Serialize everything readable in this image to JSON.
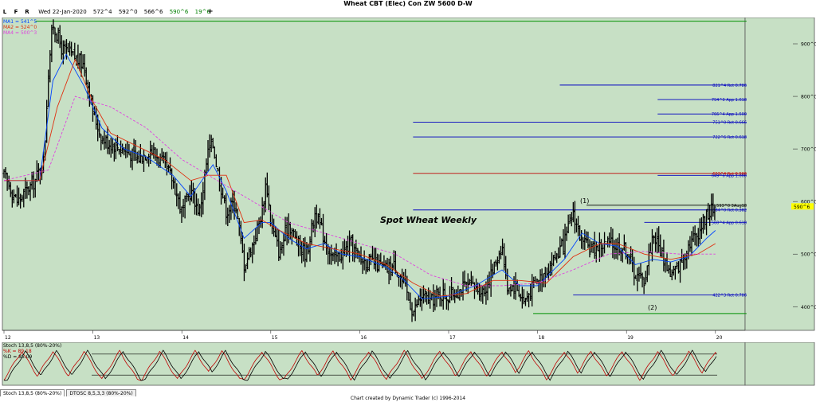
{
  "window": {
    "title": "Wheat CBT (Elec) Con ZW 5600 D-W",
    "close_glyph": "x",
    "lfr": [
      "L",
      "F",
      "R"
    ],
    "date": "Wed 22-Jan-2020",
    "open": "572^4",
    "high": "592^0",
    "low": "566^6",
    "close": "590^6",
    "change": "19^6",
    "plus_glyph": "+"
  },
  "legend": {
    "ma1_label": "MA1 = 541^5",
    "ma2_label": "MA2 = 524^0",
    "ma4_label": "MA4 = 500^3"
  },
  "colors": {
    "chart_bg": "#c7e0c5",
    "ma1": "#0044ff",
    "ma2": "#e03010",
    "ma4": "#e040e0",
    "fib_line": "#0000c0",
    "fib_red": "#c00000",
    "green_line": "#009000",
    "price_tag": "#ffff00"
  },
  "annotations": {
    "spot_label": "Spot Wheat Weekly",
    "pivot1": "(1)",
    "pivot2": "(2)"
  },
  "chart_data": [
    {
      "type": "ohlc",
      "title": "Wheat CBT (Elec) Con ZW 5600 D-W",
      "x_ticks": [
        "12",
        "13",
        "14",
        "15",
        "16",
        "17",
        "18",
        "19",
        "20"
      ],
      "y_ticks": [
        "900^0",
        "800^0",
        "700^0",
        "600^0",
        "500^0",
        "400^0"
      ],
      "ylim": [
        355,
        950
      ],
      "close_path": [
        [
          12.0,
          650
        ],
        [
          12.15,
          600
        ],
        [
          12.35,
          640
        ],
        [
          12.45,
          680
        ],
        [
          12.5,
          850
        ],
        [
          12.55,
          940
        ],
        [
          12.65,
          890
        ],
        [
          12.75,
          880
        ],
        [
          12.9,
          860
        ],
        [
          13.0,
          770
        ],
        [
          13.1,
          720
        ],
        [
          13.2,
          710
        ],
        [
          13.35,
          700
        ],
        [
          13.5,
          680
        ],
        [
          13.65,
          700
        ],
        [
          13.8,
          670
        ],
        [
          13.9,
          640
        ],
        [
          14.0,
          580
        ],
        [
          14.1,
          620
        ],
        [
          14.2,
          580
        ],
        [
          14.3,
          700
        ],
        [
          14.35,
          710
        ],
        [
          14.4,
          660
        ],
        [
          14.5,
          580
        ],
        [
          14.6,
          600
        ],
        [
          14.7,
          480
        ],
        [
          14.8,
          520
        ],
        [
          14.9,
          580
        ],
        [
          14.95,
          640
        ],
        [
          15.0,
          560
        ],
        [
          15.1,
          500
        ],
        [
          15.2,
          560
        ],
        [
          15.3,
          520
        ],
        [
          15.4,
          500
        ],
        [
          15.5,
          580
        ],
        [
          15.6,
          530
        ],
        [
          15.7,
          490
        ],
        [
          15.8,
          500
        ],
        [
          15.9,
          520
        ],
        [
          16.0,
          490
        ],
        [
          16.2,
          480
        ],
        [
          16.3,
          470
        ],
        [
          16.4,
          480
        ],
        [
          16.5,
          440
        ],
        [
          16.6,
          390
        ],
        [
          16.7,
          420
        ],
        [
          16.8,
          410
        ],
        [
          16.9,
          425
        ],
        [
          17.0,
          420
        ],
        [
          17.2,
          440
        ],
        [
          17.4,
          430
        ],
        [
          17.5,
          470
        ],
        [
          17.6,
          520
        ],
        [
          17.65,
          440
        ],
        [
          17.75,
          440
        ],
        [
          17.85,
          410
        ],
        [
          17.95,
          440
        ],
        [
          18.1,
          470
        ],
        [
          18.3,
          520
        ],
        [
          18.4,
          580
        ],
        [
          18.5,
          520
        ],
        [
          18.6,
          510
        ],
        [
          18.8,
          520
        ],
        [
          18.9,
          515
        ],
        [
          19.0,
          510
        ],
        [
          19.1,
          460
        ],
        [
          19.2,
          450
        ],
        [
          19.3,
          540
        ],
        [
          19.4,
          500
        ],
        [
          19.5,
          460
        ],
        [
          19.6,
          480
        ],
        [
          19.7,
          520
        ],
        [
          19.8,
          540
        ],
        [
          19.9,
          575
        ],
        [
          20.0,
          591
        ]
      ],
      "series": [
        {
          "name": "MA1",
          "points": [
            [
              12.0,
              640
            ],
            [
              12.4,
              640
            ],
            [
              12.55,
              830
            ],
            [
              12.7,
              880
            ],
            [
              12.9,
              820
            ],
            [
              13.1,
              740
            ],
            [
              13.35,
              700
            ],
            [
              13.6,
              685
            ],
            [
              13.9,
              650
            ],
            [
              14.1,
              610
            ],
            [
              14.35,
              670
            ],
            [
              14.5,
              620
            ],
            [
              14.7,
              530
            ],
            [
              14.9,
              560
            ],
            [
              15.0,
              560
            ],
            [
              15.2,
              530
            ],
            [
              15.4,
              510
            ],
            [
              15.6,
              520
            ],
            [
              15.8,
              500
            ],
            [
              16.0,
              495
            ],
            [
              16.3,
              475
            ],
            [
              16.5,
              450
            ],
            [
              16.7,
              415
            ],
            [
              17.0,
              420
            ],
            [
              17.3,
              440
            ],
            [
              17.6,
              470
            ],
            [
              17.8,
              440
            ],
            [
              18.0,
              440
            ],
            [
              18.3,
              490
            ],
            [
              18.5,
              540
            ],
            [
              18.7,
              520
            ],
            [
              18.9,
              515
            ],
            [
              19.1,
              480
            ],
            [
              19.3,
              490
            ],
            [
              19.5,
              485
            ],
            [
              19.7,
              495
            ],
            [
              19.9,
              530
            ],
            [
              20.0,
              545
            ]
          ]
        },
        {
          "name": "MA2",
          "points": [
            [
              12.0,
              640
            ],
            [
              12.4,
              640
            ],
            [
              12.6,
              780
            ],
            [
              12.8,
              870
            ],
            [
              13.0,
              790
            ],
            [
              13.2,
              730
            ],
            [
              13.5,
              705
            ],
            [
              13.8,
              680
            ],
            [
              14.1,
              640
            ],
            [
              14.3,
              650
            ],
            [
              14.5,
              650
            ],
            [
              14.7,
              560
            ],
            [
              14.9,
              565
            ],
            [
              15.1,
              545
            ],
            [
              15.4,
              520
            ],
            [
              15.7,
              510
            ],
            [
              16.0,
              500
            ],
            [
              16.3,
              480
            ],
            [
              16.6,
              445
            ],
            [
              16.9,
              420
            ],
            [
              17.2,
              425
            ],
            [
              17.5,
              450
            ],
            [
              17.8,
              450
            ],
            [
              18.1,
              445
            ],
            [
              18.4,
              495
            ],
            [
              18.7,
              520
            ],
            [
              18.9,
              520
            ],
            [
              19.2,
              500
            ],
            [
              19.5,
              490
            ],
            [
              19.8,
              500
            ],
            [
              20.0,
              520
            ]
          ]
        },
        {
          "name": "MA4",
          "points": [
            [
              12.0,
              640
            ],
            [
              12.5,
              660
            ],
            [
              12.8,
              800
            ],
            [
              13.2,
              780
            ],
            [
              13.6,
              740
            ],
            [
              14.0,
              680
            ],
            [
              14.4,
              640
            ],
            [
              14.8,
              600
            ],
            [
              15.2,
              560
            ],
            [
              15.6,
              540
            ],
            [
              16.0,
              520
            ],
            [
              16.4,
              500
            ],
            [
              16.8,
              460
            ],
            [
              17.2,
              440
            ],
            [
              17.6,
              440
            ],
            [
              18.0,
              445
            ],
            [
              18.4,
              470
            ],
            [
              18.8,
              500
            ],
            [
              19.2,
              505
            ],
            [
              19.6,
              500
            ],
            [
              20.0,
              500
            ]
          ]
        }
      ],
      "levels": [
        {
          "label": "821^4 Ret 0.786",
          "y": 821.5,
          "x0": 18.25,
          "x1": 20.35,
          "color": "#0000c0"
        },
        {
          "label": "794^0 App 1.618",
          "y": 794,
          "x0": 19.35,
          "x1": 20.35,
          "color": "#0000c0"
        },
        {
          "label": "766^4 App 1.500",
          "y": 766.5,
          "x0": 19.35,
          "x1": 20.35,
          "color": "#0000c0"
        },
        {
          "label": "751^0 Ret 0.666",
          "y": 751,
          "x0": 16.6,
          "x1": 20.35,
          "color": "#0000c0"
        },
        {
          "label": "722^6 Ret 0.618",
          "y": 722.75,
          "x0": 16.6,
          "x1": 20.35,
          "color": "#0000c0"
        },
        {
          "label": "653^4 Ret 0.500",
          "y": 653.5,
          "x0": 16.6,
          "x1": 20.35,
          "color": "#c00000"
        },
        {
          "label": "649^6 App 1.000",
          "y": 649.75,
          "x0": 19.35,
          "x1": 20.35,
          "color": "#0000c0"
        },
        {
          "label": "H 593^0 3Aug18",
          "y": 593,
          "x0": 18.55,
          "x1": 20.35,
          "color": "#000000"
        },
        {
          "label": "584^0 Ret 0.382",
          "y": 584,
          "x0": 16.6,
          "x1": 20.35,
          "color": "#0000c0"
        },
        {
          "label": "560^4 App 0.618",
          "y": 560.5,
          "x0": 19.2,
          "x1": 20.35,
          "color": "#0000c0"
        },
        {
          "label": "422^3 Ret 0.786",
          "y": 422.4,
          "x0": 18.4,
          "x1": 20.35,
          "color": "#0000c0"
        },
        {
          "label": "",
          "y": 943,
          "x0": 12.35,
          "x1": 20.35,
          "color": "#009000"
        },
        {
          "label": "",
          "y": 387,
          "x0": 17.95,
          "x1": 20.35,
          "color": "#009000"
        }
      ],
      "last_price": "590^6"
    },
    {
      "type": "line",
      "title": "Stoch 13,8,5 (80%-20%)",
      "k_label": "%K = 89.18",
      "d_label": "%D = 85.09",
      "ylim": [
        0,
        100
      ],
      "levels": [
        80,
        20
      ],
      "k_value": 89.18,
      "d_value": 85.09,
      "cycle_peaks_x": [
        12.2,
        12.55,
        12.9,
        13.3,
        13.75,
        14.15,
        14.45,
        14.9,
        15.35,
        15.7,
        16.1,
        16.5,
        16.9,
        17.25,
        17.6,
        17.9,
        18.3,
        18.6,
        18.95,
        19.35,
        19.7,
        20.0
      ]
    }
  ],
  "tabs": [
    "Stoch 13,8,5 (80%-20%)",
    "DTOSC 8,5,3,3 (80%-20%)"
  ],
  "footer": {
    "credit": "Chart created by Dynamic Trader  (c) 1996-2014"
  }
}
